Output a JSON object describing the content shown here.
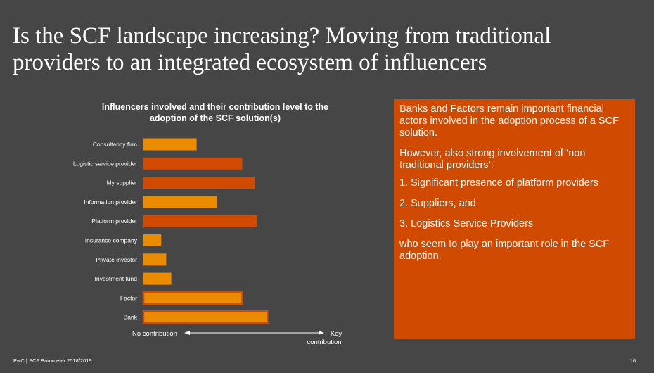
{
  "slide": {
    "title": "Is the SCF landscape increasing? Moving from traditional\nproviders to an integrated ecosystem of influencers",
    "footer": "PwC | SCF Barometer 2018/2019",
    "page_number": "16"
  },
  "colors": {
    "background": "#464646",
    "bar_light": "#eb8c00",
    "bar_dark": "#d04a02",
    "text_box": "#d04a02"
  },
  "chart_data": {
    "type": "bar",
    "orientation": "horizontal",
    "title": "Influencers involved and their contribution level to the\nadoption of the SCF solution(s)",
    "categories": [
      "Consultancy firm",
      "Logistic service provider",
      "My supplier",
      "Information provider",
      "Platform provider",
      "Insurance company",
      "Private investor",
      "Investment fund",
      "Factor",
      "Bank"
    ],
    "values": [
      2.1,
      3.9,
      4.4,
      2.9,
      4.5,
      0.7,
      0.9,
      1.1,
      3.9,
      4.9
    ],
    "bar_colors": [
      "#eb8c00",
      "#d04a02",
      "#d04a02",
      "#eb8c00",
      "#d04a02",
      "#eb8c00",
      "#eb8c00",
      "#eb8c00",
      "#eb8c00",
      "#eb8c00"
    ],
    "outlined": [
      false,
      false,
      false,
      false,
      false,
      false,
      false,
      false,
      true,
      true
    ],
    "xlim": [
      0,
      7.5
    ],
    "axis": {
      "left_label": "No contribution",
      "right_label": "Key\ncontribution"
    }
  },
  "textbox": {
    "p1": "Banks and Factors remain important financial actors involved in the adoption process of a SCF solution.",
    "p2": "However, also strong involvement of ‘non traditional providers’:",
    "item1": "1. Significant presence of platform providers",
    "item2": "2. Suppliers, and",
    "item3": "3. Logistics Service Providers",
    "p3": "who seem to play an important role in the SCF adoption."
  }
}
